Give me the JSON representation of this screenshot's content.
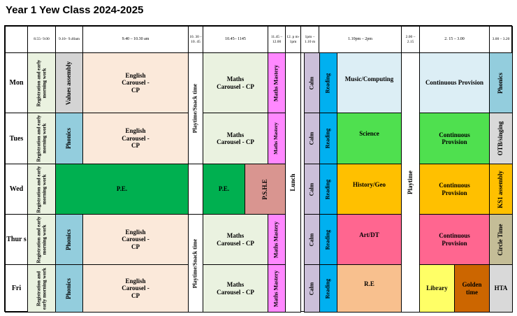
{
  "title": "Year 1 Yew Class 2024-2025",
  "headers": {
    "t1": "8.55- 9.00",
    "t2": "9.10– 9.40am",
    "t3": "9.40 – 10.30 am",
    "t4": "10. 30 – 10. 45",
    "t5": "10.45– 1145",
    "t6": "11.45 – 12.00",
    "t7": "12. p m- 1pm",
    "t8": "1pm – 1.10 m",
    "t9": "1.10pm – 2pm",
    "t10": "2.00 – 2.15",
    "t11": "2. 15 – 3.00",
    "t12": "3.00 – 3.20"
  },
  "days": {
    "mon": "Mon",
    "tues": "Tues",
    "wed": "Wed",
    "thurs": "Thur s",
    "fri": "Fri"
  },
  "spans": {
    "playtime_snack": "Playtime/Snack time",
    "lunch": "Lunch",
    "playtime": "Playtime"
  },
  "rows": {
    "mon": {
      "reg": "Registration and early morning work",
      "p2": "Values assembly",
      "p3": "English Carousel - CP",
      "p5": "Maths Carousel - CP",
      "p6": "Maths Mastery",
      "calm": "Calm",
      "reading": "Reading",
      "p9": "Music/Computing",
      "p11": "Continuous Provision",
      "p12": "Phonics"
    },
    "tues": {
      "reg": "Registration and early morning work",
      "p2": "Phonics",
      "p3": "English Carousel - CP",
      "p5": "Maths Carousel - CP",
      "p6": "Maths Mastery",
      "calm": "Calm",
      "reading": "Reading",
      "p9": "Science",
      "p11": "Continuous Provision",
      "p12": "OTB/singing"
    },
    "wed": {
      "reg": "Registration and early morning work",
      "pe1": "P.E.",
      "pe2": "P.E.",
      "pshe": "P.S.H.E",
      "calm": "Calm",
      "reading": "Reading",
      "p9": "History/Geo",
      "p11": "Continuous Provision",
      "p12": "KS1 assembly"
    },
    "thurs": {
      "reg": "Registration and early morning work",
      "p2": "Phonics",
      "p3": "English Carousel - CP",
      "p5": "Maths Carousel - CP",
      "p6": "Maths Mastery",
      "calm": "Calm",
      "reading": "Reading",
      "p9": "Art/DT",
      "p11": "Continuous Provision",
      "p12": "Circle Time"
    },
    "fri": {
      "reg": "Registration and early morning work",
      "p2": "Phonics",
      "p3": "English Carousel - CP",
      "p5": "Maths Carousel - CP",
      "p6": "Maths Mastery",
      "calm": "Calm",
      "reading": "Reading",
      "p9": "R.E",
      "library": "Library",
      "golden": "Golden time",
      "p12": "HTA"
    }
  },
  "colors": {
    "english": "#fbe9da",
    "maths": "#eaf2e0",
    "mastery": "#ff88ff",
    "calm": "#cbbfd9",
    "reading": "#00b0f0",
    "music": "#dceef5",
    "science": "#4fe04f",
    "history": "#ffc000",
    "art": "#ff6690",
    "re": "#f8c08e",
    "pe": "#00b050",
    "pshe": "#d99590",
    "continuous_mon": "#dceef5",
    "continuous_tues": "#4fe04f",
    "continuous_wed": "#ffc000",
    "continuous_thurs": "#ff6690",
    "library": "#ffff66",
    "golden": "#cc6600",
    "phonics": "#93cddd",
    "values": "#d4d4d4",
    "registration": "#eaf2e0",
    "ks1": "#ffc000",
    "circle": "#c4bd97",
    "hta": "#d9d9d9"
  }
}
